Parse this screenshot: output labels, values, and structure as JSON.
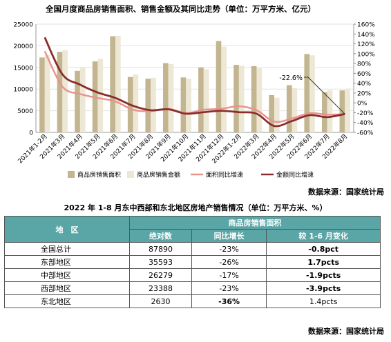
{
  "chart_title": "全国月度商品房销售面积、销售金额及其同比走势（单位：万平方米、亿元）",
  "chart_source": "数据来源：国家统计局",
  "chart_data": {
    "type": "bar",
    "categories": [
      "2021年1-2月",
      "2021年3月",
      "2021年4月",
      "2021年5月",
      "2021年6月",
      "2021年7月",
      "2021年8月",
      "2021年9月",
      "2021年10月",
      "2021年11月",
      "2021年12月",
      "2022年1-2月",
      "2022年3月",
      "2022年4月",
      "2022年5月",
      "2022年6月",
      "2022年7月",
      "2022年8月"
    ],
    "series": [
      {
        "name": "商品房销售面积",
        "kind": "bar",
        "axis": "left",
        "color": "#c2b58f",
        "values": [
          17300,
          18600,
          14200,
          16400,
          22200,
          12800,
          12400,
          16000,
          12700,
          15000,
          21100,
          15600,
          15300,
          8600,
          10900,
          18100,
          9300,
          9700
        ]
      },
      {
        "name": "商品房销售金额",
        "kind": "bar",
        "axis": "left",
        "color": "#ede7d5",
        "values": [
          17800,
          19000,
          15000,
          17000,
          22300,
          13400,
          12600,
          15800,
          12400,
          14600,
          19800,
          15400,
          14800,
          8000,
          10200,
          17800,
          9700,
          10100
        ]
      },
      {
        "name": "面积同比增速",
        "kind": "line",
        "axis": "right",
        "color": "#e8938e",
        "values": [
          105,
          33,
          18,
          10,
          3,
          -14,
          -17,
          -12,
          -21,
          -14,
          -12,
          -7,
          -15,
          -38,
          -32,
          -21,
          -24,
          -22.6
        ]
      },
      {
        "name": "金额同比增速",
        "kind": "line",
        "axis": "right",
        "color": "#8a2d2c",
        "values": [
          133,
          58,
          37,
          21,
          10,
          -6,
          -15,
          -13,
          -22,
          -19,
          -16,
          -19,
          -22,
          -47,
          -37,
          -25,
          -29,
          -22.6
        ]
      }
    ],
    "ylim_left": [
      0,
      25000
    ],
    "ylim_right": [
      -60,
      160
    ],
    "yticks_left": [
      "0",
      "5000",
      "10000",
      "15000",
      "20000",
      "25000"
    ],
    "yticks_right": [
      "-60%",
      "-40%",
      "-20%",
      "0%",
      "20%",
      "40%",
      "60%",
      "80%",
      "100%",
      "120%",
      "140%",
      "160%"
    ],
    "annotation": "-22.6%",
    "legend_position": "bottom",
    "grid": true
  },
  "table": {
    "title": "2022 年 1-8 月东中西部和东北地区房地产销售情况（单位：万平方米、%）",
    "header_region": "地　区",
    "header_group": "商品房销售面积",
    "header_cols": [
      "绝对数",
      "同比增长",
      "较 1-6 月变化"
    ],
    "rows": [
      {
        "region": "全国总计",
        "abs": "87890",
        "yoy": "-23%",
        "chg": "-0.8pct"
      },
      {
        "region": "东部地区",
        "abs": "35593",
        "yoy": "-26%",
        "chg": "1.7pcts"
      },
      {
        "region": "中部地区",
        "abs": "26279",
        "yoy": "-17%",
        "chg": "-1.9pcts"
      },
      {
        "region": "西部地区",
        "abs": "23388",
        "yoy": "-23%",
        "chg": "-3.9pcts"
      },
      {
        "region": "东北地区",
        "abs": "2630",
        "yoy": "-36%",
        "chg": "1.4pcts"
      }
    ],
    "source": "数据来源：国家统计局"
  }
}
